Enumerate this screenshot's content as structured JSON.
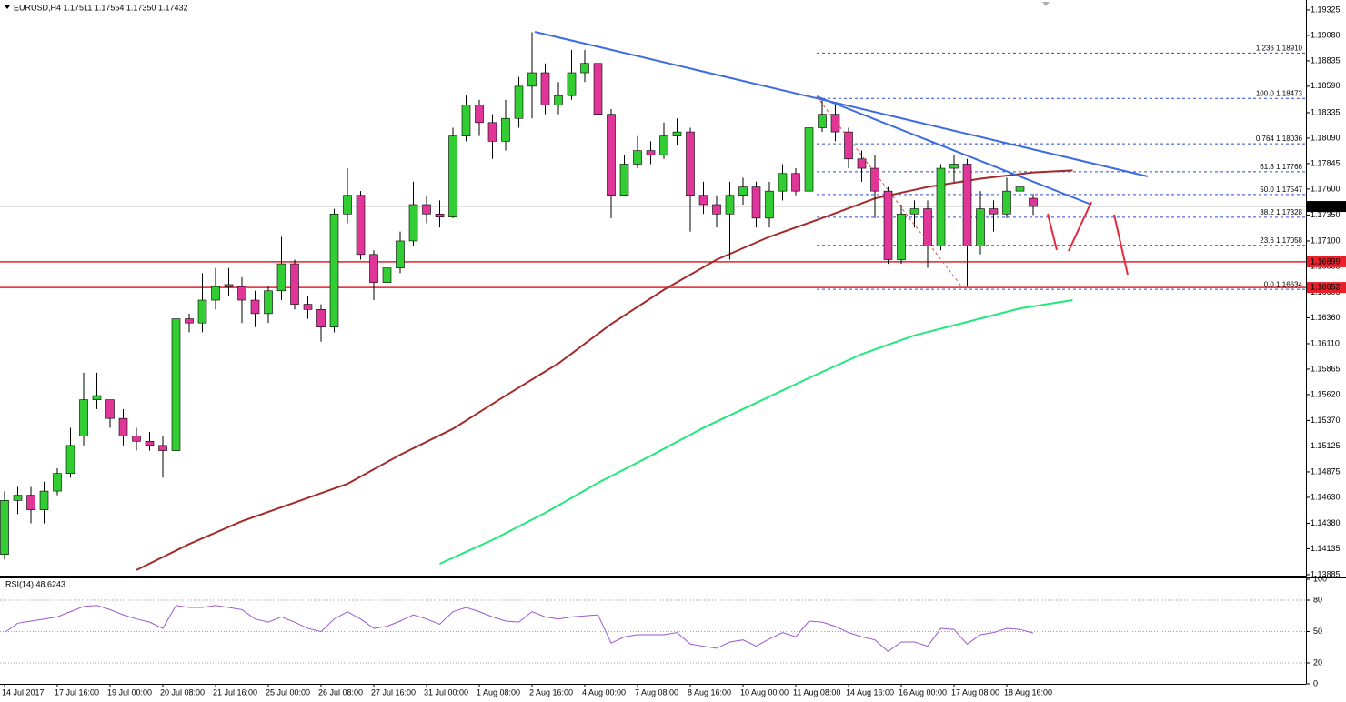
{
  "chart_data": [
    {
      "type": "candlestick",
      "title": "EURUSD,H4  1.17511 1.17554 1.17350 1.17432",
      "categories": [
        "14 Jul 2017",
        null,
        null,
        null,
        "17 Jul 16:00",
        null,
        null,
        null,
        "19 Jul 00:00",
        null,
        null,
        null,
        "20 Jul 08:00",
        null,
        null,
        null,
        "21 Jul 16:00",
        null,
        null,
        null,
        "25 Jul 00:00",
        null,
        null,
        null,
        "26 Jul 08:00",
        null,
        null,
        null,
        "27 Jul 16:00",
        null,
        null,
        null,
        "31 Jul 00:00",
        null,
        null,
        null,
        "1 Aug 08:00",
        null,
        null,
        null,
        "2 Aug 16:00",
        null,
        null,
        null,
        "4 Aug 00:00",
        null,
        null,
        null,
        "7 Aug 08:00",
        null,
        null,
        null,
        "8 Aug 16:00",
        null,
        null,
        null,
        "10 Aug 00:00",
        null,
        null,
        null,
        "11 Aug 08:00",
        null,
        null,
        null,
        "14 Aug 16:00",
        null,
        null,
        null,
        "16 Aug 00:00",
        null,
        null,
        null,
        "17 Aug 08:00",
        null,
        null,
        null,
        "18 Aug 16:00",
        null,
        null
      ],
      "open": [
        1.1408,
        1.146,
        1.1465,
        1.1451,
        1.1469,
        1.1486,
        1.1522,
        1.1557,
        1.1557,
        1.1539,
        1.1522,
        1.1517,
        1.1513,
        1.1508,
        1.1635,
        1.1631,
        1.1653,
        1.1666,
        1.1666,
        1.1653,
        1.164,
        1.1662,
        1.1688,
        1.1649,
        1.1644,
        1.1627,
        1.1736,
        1.1754,
        1.1697,
        1.167,
        1.1684,
        1.171,
        1.1745,
        1.1736,
        1.1733,
        1.1811,
        1.1841,
        1.1824,
        1.1806,
        1.1828,
        1.1859,
        1.1872,
        1.1841,
        1.185,
        1.1872,
        1.1881,
        1.1832,
        1.1754,
        1.1784,
        1.1797,
        1.1793,
        1.1811,
        1.1815,
        1.1754,
        1.1745,
        1.1736,
        1.1754,
        1.1762,
        1.1732,
        1.1758,
        1.1775,
        1.1758,
        1.1819,
        1.1832,
        1.1815,
        1.1789,
        1.178,
        1.1758,
        1.1692,
        1.1736,
        1.1741,
        1.1705,
        1.178,
        1.1784,
        1.1705,
        1.1741,
        1.1736,
        1.1758,
        1.17511
      ],
      "high": [
        1.1469,
        1.1473,
        1.1473,
        1.1478,
        1.1491,
        1.153,
        1.1583,
        1.1583,
        1.1557,
        1.1548,
        1.153,
        1.1526,
        1.1522,
        1.1662,
        1.164,
        1.1679,
        1.1684,
        1.1684,
        1.1675,
        1.1662,
        1.1666,
        1.1714,
        1.1692,
        1.1657,
        1.1649,
        1.1741,
        1.178,
        1.1758,
        1.1701,
        1.1692,
        1.1719,
        1.1767,
        1.1754,
        1.1749,
        1.1819,
        1.185,
        1.1846,
        1.1832,
        1.1846,
        1.1868,
        1.1911,
        1.1881,
        1.1863,
        1.1894,
        1.1894,
        1.189,
        1.1837,
        1.1793,
        1.1811,
        1.1806,
        1.1824,
        1.1828,
        1.1819,
        1.1767,
        1.1754,
        1.1767,
        1.1771,
        1.1767,
        1.1767,
        1.1784,
        1.178,
        1.1837,
        1.1846,
        1.1841,
        1.1819,
        1.1797,
        1.1793,
        1.1762,
        1.1745,
        1.1749,
        1.1749,
        1.1784,
        1.1793,
        1.1789,
        1.1758,
        1.1749,
        1.1771,
        1.1771,
        1.17554
      ],
      "low": [
        1.1403,
        1.1447,
        1.1438,
        1.1438,
        1.1465,
        1.1482,
        1.1513,
        1.1548,
        1.153,
        1.1513,
        1.1508,
        1.1508,
        1.1482,
        1.1504,
        1.1622,
        1.1622,
        1.1644,
        1.1657,
        1.1631,
        1.1627,
        1.1631,
        1.1653,
        1.1644,
        1.1635,
        1.1613,
        1.1622,
        1.1727,
        1.1692,
        1.1653,
        1.1666,
        1.1679,
        1.1705,
        1.1727,
        1.1723,
        1.1732,
        1.1806,
        1.1811,
        1.1789,
        1.1797,
        1.1819,
        1.1828,
        1.1832,
        1.1832,
        1.1846,
        1.1863,
        1.1828,
        1.1732,
        1.1754,
        1.178,
        1.1784,
        1.1789,
        1.1802,
        1.1719,
        1.1736,
        1.1723,
        1.1692,
        1.1745,
        1.1723,
        1.1723,
        1.1749,
        1.1754,
        1.1754,
        1.1815,
        1.1806,
        1.178,
        1.1767,
        1.1732,
        1.1688,
        1.1688,
        1.1723,
        1.1684,
        1.1701,
        1.1767,
        1.1666,
        1.1697,
        1.1719,
        1.1732,
        1.1749,
        1.1735
      ],
      "close": [
        1.146,
        1.1465,
        1.1451,
        1.1469,
        1.1486,
        1.1513,
        1.1557,
        1.1561,
        1.1539,
        1.1522,
        1.1517,
        1.1513,
        1.1508,
        1.1635,
        1.1631,
        1.1653,
        1.1666,
        1.1668,
        1.1653,
        1.164,
        1.1662,
        1.1688,
        1.1649,
        1.1644,
        1.1627,
        1.1736,
        1.1754,
        1.1697,
        1.167,
        1.1684,
        1.171,
        1.1745,
        1.1736,
        1.1733,
        1.1811,
        1.1841,
        1.1824,
        1.1806,
        1.1828,
        1.1859,
        1.1872,
        1.1841,
        1.185,
        1.1872,
        1.1881,
        1.1832,
        1.1754,
        1.1784,
        1.1797,
        1.1793,
        1.1811,
        1.1815,
        1.1754,
        1.1745,
        1.1736,
        1.1754,
        1.1762,
        1.1732,
        1.1758,
        1.1775,
        1.1758,
        1.1819,
        1.1832,
        1.1815,
        1.1789,
        1.178,
        1.1758,
        1.1692,
        1.1736,
        1.1741,
        1.1705,
        1.178,
        1.1784,
        1.1705,
        1.1741,
        1.1736,
        1.1758,
        1.1762,
        1.17432
      ],
      "up_color": "#32cd32",
      "down_color": "#e0369a",
      "moving_averages": [
        {
          "color": "#a52a2a",
          "x": [
            10,
            14,
            18,
            22,
            26,
            30,
            34,
            38,
            42,
            46,
            50,
            54,
            58,
            62,
            66,
            70,
            74,
            78,
            81
          ],
          "values": [
            1.1393,
            1.1418,
            1.144,
            1.1458,
            1.1476,
            1.1504,
            1.1529,
            1.1561,
            1.1592,
            1.163,
            1.1663,
            1.1692,
            1.1714,
            1.1732,
            1.1751,
            1.1762,
            1.177,
            1.1776,
            1.1778
          ]
        },
        {
          "color": "#22e87a",
          "x": [
            33,
            37,
            41,
            45,
            49,
            53,
            57,
            61,
            65,
            69,
            73,
            77,
            81
          ],
          "values": [
            1.1399,
            1.1422,
            1.1448,
            1.1477,
            1.1503,
            1.153,
            1.1554,
            1.1578,
            1.1601,
            1.1619,
            1.1632,
            1.1645,
            1.1653
          ]
        }
      ],
      "fib_levels": [
        {
          "value": 1.1891,
          "label": "1.236 1.18910"
        },
        {
          "value": 1.18473,
          "label": "100.0 1.18473"
        },
        {
          "value": 1.18036,
          "label": "0.764 1.18036"
        },
        {
          "value": 1.17766,
          "label": "61.8 1.17766"
        },
        {
          "value": 1.17547,
          "label": "50.0 1.17547"
        },
        {
          "value": 1.17328,
          "label": "38.2 1.17328"
        },
        {
          "value": 1.17058,
          "label": "23.6 1.17058"
        },
        {
          "value": 1.16634,
          "label": "0.0 1.16634"
        }
      ],
      "price_lines": [
        1.16899,
        1.16652
      ],
      "current_price": 1.17432,
      "ylim": [
        1.13876,
        1.19421
      ],
      "yticks": [
        1.19325,
        {
          "value": 1.1908,
          "label": "1.19080"
        },
        1.18835,
        {
          "value": 1.1859,
          "label": "1.18590"
        },
        1.18335,
        {
          "value": 1.1809,
          "label": "1.18090"
        },
        1.17845,
        {
          "value": 1.176,
          "label": "1.17600"
        },
        {
          "value": 1.1735,
          "label": "1.17350"
        },
        {
          "value": 1.171,
          "label": "1.17100"
        },
        1.16855,
        1.16605,
        {
          "value": 1.1636,
          "label": "1.16360"
        },
        {
          "value": 1.1611,
          "label": "1.16110"
        },
        1.15865,
        {
          "value": 1.1562,
          "label": "1.15620"
        },
        {
          "value": 1.1537,
          "label": "1.15370"
        },
        1.15125,
        1.14875,
        {
          "value": 1.1463,
          "label": "1.14630"
        },
        {
          "value": 1.1438,
          "label": "1.14380"
        },
        1.14135,
        1.13885
      ]
    },
    {
      "type": "line",
      "title": "RSI(14) 48.6243",
      "color": "#9b59d0",
      "values": [
        49,
        58,
        60,
        62,
        64,
        69,
        74,
        75,
        71,
        66,
        62,
        59,
        53,
        75,
        73,
        73,
        75,
        73,
        71,
        62,
        59,
        64,
        59,
        53,
        50,
        62,
        69,
        62,
        53,
        55,
        60,
        66,
        62,
        57,
        69,
        73,
        69,
        64,
        60,
        59,
        69,
        64,
        62,
        64,
        65,
        66,
        39,
        45,
        47,
        47,
        47,
        49,
        38,
        36,
        34,
        40,
        42,
        36,
        43,
        49,
        45,
        60,
        59,
        55,
        49,
        45,
        42,
        31,
        40,
        40,
        36,
        53,
        52,
        38,
        47,
        49,
        53,
        52,
        48.6243
      ],
      "ylim": [
        0,
        100
      ],
      "yticks": [
        100,
        80,
        50,
        20,
        0
      ],
      "level_lines": [
        80,
        50,
        20
      ]
    }
  ]
}
